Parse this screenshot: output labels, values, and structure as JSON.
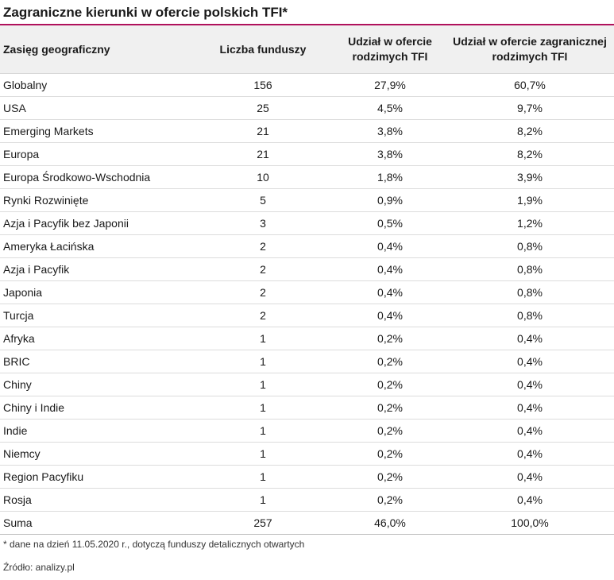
{
  "title": "Zagraniczne kierunki w ofercie polskich TFI*",
  "colors": {
    "accent": "#b0115c",
    "header_bg": "#f0f0f0"
  },
  "table": {
    "headers": [
      "Zasięg geograficzny",
      "Liczba funduszy",
      "Udział w ofercie rodzimych TFI",
      "Udział w ofercie zagranicznej rodzimych TFI"
    ],
    "rows": [
      [
        "Globalny",
        "156",
        "27,9%",
        "60,7%"
      ],
      [
        "USA",
        "25",
        "4,5%",
        "9,7%"
      ],
      [
        "Emerging Markets",
        "21",
        "3,8%",
        "8,2%"
      ],
      [
        "Europa",
        "21",
        "3,8%",
        "8,2%"
      ],
      [
        "Europa Środkowo-Wschodnia",
        "10",
        "1,8%",
        "3,9%"
      ],
      [
        "Rynki Rozwinięte",
        "5",
        "0,9%",
        "1,9%"
      ],
      [
        "Azja i Pacyfik bez Japonii",
        "3",
        "0,5%",
        "1,2%"
      ],
      [
        "Ameryka Łacińska",
        "2",
        "0,4%",
        "0,8%"
      ],
      [
        "Azja i Pacyfik",
        "2",
        "0,4%",
        "0,8%"
      ],
      [
        "Japonia",
        "2",
        "0,4%",
        "0,8%"
      ],
      [
        "Turcja",
        "2",
        "0,4%",
        "0,8%"
      ],
      [
        "Afryka",
        "1",
        "0,2%",
        "0,4%"
      ],
      [
        "BRIC",
        "1",
        "0,2%",
        "0,4%"
      ],
      [
        "Chiny",
        "1",
        "0,2%",
        "0,4%"
      ],
      [
        "Chiny i Indie",
        "1",
        "0,2%",
        "0,4%"
      ],
      [
        "Indie",
        "1",
        "0,2%",
        "0,4%"
      ],
      [
        "Niemcy",
        "1",
        "0,2%",
        "0,4%"
      ],
      [
        "Region Pacyfiku",
        "1",
        "0,2%",
        "0,4%"
      ],
      [
        "Rosja",
        "1",
        "0,2%",
        "0,4%"
      ]
    ],
    "total": [
      "Suma",
      "257",
      "46,0%",
      "100,0%"
    ]
  },
  "footnote": "* dane na dzień 11.05.2020 r., dotyczą funduszy detalicznych otwartych",
  "source": "Źródło: analizy.pl"
}
